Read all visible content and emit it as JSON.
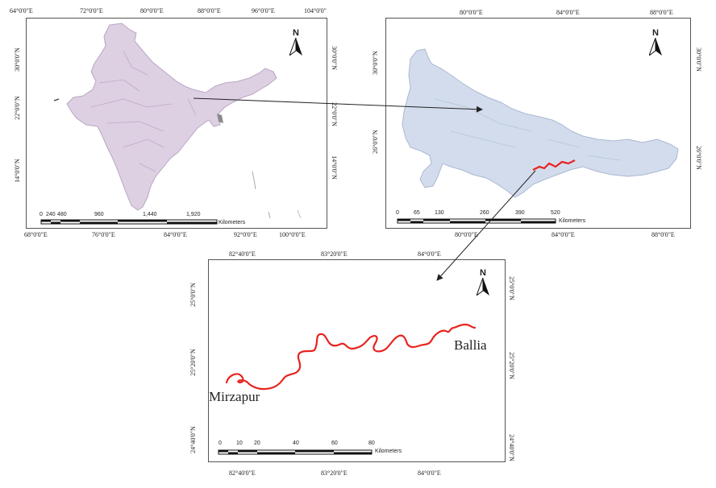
{
  "india_map": {
    "top_ticks": [
      "64°0'0\"E",
      "72°0'0\"E",
      "80°0'0\"E",
      "88°0'0\"E",
      "96°0'0\"E",
      "104°0'0\""
    ],
    "bottom_ticks": [
      "68°0'0\"E",
      "76°0'0\"E",
      "84°0'0\"E",
      "92°0'0\"E",
      "100°0'0\"E"
    ],
    "left_ticks": [
      "30°0'0\"N",
      "22°0'0\"N",
      "14°0'0\"N"
    ],
    "right_ticks": [
      "30°0'0\"N",
      "22°0'0\"N",
      "14°0'0\"N"
    ],
    "north_label": "N",
    "scale_numbers": [
      "0",
      "240",
      "480",
      "960",
      "1,440",
      "1,920"
    ],
    "scale_unit": "Kilometers",
    "fill_color": "#ddd0e3"
  },
  "up_map": {
    "top_ticks": [
      "80°0'0\"E",
      "84°0'0\"E",
      "88°0'0\"E"
    ],
    "bottom_ticks": [
      "80°0'0\"E",
      "84°0'0\"E",
      "88°0'0\"E"
    ],
    "left_ticks": [
      "30°0'0\"N",
      "26°0'0\"N"
    ],
    "right_ticks": [
      "30°0'0\"N",
      "26°0'0\"N"
    ],
    "north_label": "N",
    "scale_numbers": [
      "0",
      "65",
      "130",
      "260",
      "390",
      "520"
    ],
    "scale_unit": "Kilometers",
    "fill_color": "#d3dced"
  },
  "river_map": {
    "top_ticks": [
      "82°40'0\"E",
      "83°20'0\"E",
      "84°0'0\"E"
    ],
    "bottom_ticks": [
      "82°40'0\"E",
      "83°20'0\"E",
      "84°0'0\"E"
    ],
    "left_ticks": [
      "25°0'0\"N",
      "25°20'0\"N",
      "24°40'0\"N"
    ],
    "right_ticks": [
      "25°0'0\"N",
      "25°20'0\"N",
      "24°40'0\"N"
    ],
    "north_label": "N",
    "scale_numbers": [
      "0",
      "10",
      "20",
      "40",
      "60",
      "80"
    ],
    "scale_unit": "Kilometers",
    "places": {
      "start": "Mirzapur",
      "end": "Ballia"
    },
    "river_color": "#e8231f"
  }
}
